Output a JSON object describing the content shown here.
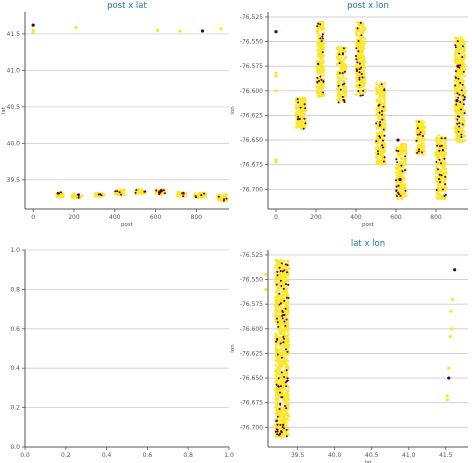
{
  "colors": {
    "title": "#1f77b4",
    "grid": "#cccccc",
    "axis": "#555555",
    "yellow": "#fde725",
    "purple": "#440154"
  },
  "chart_data": [
    {
      "id": "post_lat",
      "type": "scatter",
      "title": "post x lat",
      "xlabel": "post",
      "ylabel": "lat",
      "xlim": [
        -40,
        960
      ],
      "ylim": [
        39.1,
        41.8
      ],
      "xticks": [
        0,
        200,
        400,
        600,
        800
      ],
      "yticks": [
        39.5,
        40.0,
        40.5,
        41.0,
        41.5
      ],
      "ytick_labels": [
        "39.5",
        "40.0",
        "40.5",
        "41.0",
        "41.5"
      ],
      "grid": "y",
      "clusters": [
        {
          "x": [
            110,
            150
          ],
          "y": [
            39.26,
            39.33
          ]
        },
        {
          "x": [
            190,
            240
          ],
          "y": [
            39.25,
            39.31
          ]
        },
        {
          "x": [
            300,
            350
          ],
          "y": [
            39.27,
            39.32
          ]
        },
        {
          "x": [
            400,
            450
          ],
          "y": [
            39.29,
            39.37
          ]
        },
        {
          "x": [
            500,
            550
          ],
          "y": [
            39.3,
            39.37
          ]
        },
        {
          "x": [
            600,
            650
          ],
          "y": [
            39.3,
            39.37
          ]
        },
        {
          "x": [
            700,
            750
          ],
          "y": [
            39.27,
            39.33
          ]
        },
        {
          "x": [
            790,
            850
          ],
          "y": [
            39.25,
            39.32
          ]
        },
        {
          "x": [
            900,
            950
          ],
          "y": [
            39.21,
            39.3
          ]
        }
      ],
      "extra_points": [
        {
          "x": 0,
          "y": 41.62,
          "c": "purple"
        },
        {
          "x": 0,
          "y": 41.55,
          "c": "yellow"
        },
        {
          "x": 0,
          "y": 41.52,
          "c": "yellow"
        },
        {
          "x": 210,
          "y": 41.59,
          "c": "yellow"
        },
        {
          "x": 610,
          "y": 41.55,
          "c": "yellow"
        },
        {
          "x": 720,
          "y": 41.54,
          "c": "yellow"
        },
        {
          "x": 830,
          "y": 41.54,
          "c": "purple"
        },
        {
          "x": 920,
          "y": 41.57,
          "c": "yellow"
        },
        {
          "x": 620,
          "y": 39.33,
          "c": "purple"
        },
        {
          "x": 628,
          "y": 39.35,
          "c": "purple"
        }
      ]
    },
    {
      "id": "post_lon",
      "type": "scatter",
      "title": "post x lon",
      "xlabel": "post",
      "ylabel": "lon",
      "xlim": [
        -40,
        960
      ],
      "ylim": [
        -76.72,
        -76.52
      ],
      "xticks": [
        0,
        200,
        400,
        600,
        800
      ],
      "yticks": [
        -76.525,
        -76.55,
        -76.575,
        -76.6,
        -76.625,
        -76.65,
        -76.675,
        -76.7
      ],
      "ytick_labels": [
        "-76.525",
        "-76.550",
        "-76.575",
        "-76.600",
        "-76.625",
        "-76.650",
        "-76.675",
        "-76.700"
      ],
      "grid": "y",
      "clusters": [
        {
          "x": [
            100,
            150
          ],
          "y": [
            -76.64,
            -76.607
          ]
        },
        {
          "x": [
            205,
            240
          ],
          "y": [
            -76.608,
            -76.53
          ]
        },
        {
          "x": [
            305,
            350
          ],
          "y": [
            -76.612,
            -76.556
          ]
        },
        {
          "x": [
            400,
            445
          ],
          "y": [
            -76.605,
            -76.53
          ]
        },
        {
          "x": [
            500,
            545
          ],
          "y": [
            -76.675,
            -76.592
          ]
        },
        {
          "x": [
            600,
            650
          ],
          "y": [
            -76.71,
            -76.654
          ]
        },
        {
          "x": [
            700,
            745
          ],
          "y": [
            -76.665,
            -76.63
          ]
        },
        {
          "x": [
            800,
            850
          ],
          "y": [
            -76.71,
            -76.645
          ]
        },
        {
          "x": [
            895,
            945
          ],
          "y": [
            -76.652,
            -76.546
          ]
        }
      ],
      "extra_points": [
        {
          "x": 0,
          "y": -76.54,
          "c": "purple"
        },
        {
          "x": 0,
          "y": -76.582,
          "c": "yellow"
        },
        {
          "x": 0,
          "y": -76.585,
          "c": "yellow"
        },
        {
          "x": 0,
          "y": -76.6,
          "c": "yellow"
        },
        {
          "x": 0,
          "y": -76.67,
          "c": "yellow"
        },
        {
          "x": 0,
          "y": -76.672,
          "c": "yellow"
        },
        {
          "x": 610,
          "y": -76.65,
          "c": "purple"
        },
        {
          "x": 620,
          "y": -76.69,
          "c": "purple"
        },
        {
          "x": 910,
          "y": -76.575,
          "c": "purple"
        },
        {
          "x": 905,
          "y": -76.61,
          "c": "purple"
        }
      ]
    },
    {
      "id": "empty",
      "type": "scatter",
      "title": "",
      "xlabel": "",
      "ylabel": "",
      "xlim": [
        0,
        1
      ],
      "ylim": [
        0,
        1
      ],
      "xticks": [
        0,
        0.2,
        0.4,
        0.6,
        0.8,
        1.0
      ],
      "xtick_labels": [
        "0.0",
        "0.2",
        "0.4",
        "0.6",
        "0.8",
        "1.0"
      ],
      "yticks": [
        0,
        0.2,
        0.4,
        0.6,
        0.8,
        1.0
      ],
      "ytick_labels": [
        "0.0",
        "0.2",
        "0.4",
        "0.6",
        "0.8",
        "1.0"
      ],
      "grid": "y",
      "clusters": [],
      "extra_points": []
    },
    {
      "id": "lat_lon",
      "type": "scatter",
      "title": "lat x lon",
      "xlabel": "lat",
      "ylabel": "lon",
      "xlim": [
        39.1,
        41.8
      ],
      "ylim": [
        -76.72,
        -76.52
      ],
      "xticks": [
        39.5,
        40.0,
        40.5,
        41.0,
        41.5
      ],
      "xtick_labels": [
        "39.5",
        "40.0",
        "40.5",
        "41.0",
        "41.5"
      ],
      "yticks": [
        -76.525,
        -76.55,
        -76.575,
        -76.6,
        -76.625,
        -76.65,
        -76.675,
        -76.7
      ],
      "ytick_labels": [
        "-76.525",
        "-76.550",
        "-76.575",
        "-76.600",
        "-76.625",
        "-76.650",
        "-76.675",
        "-76.700"
      ],
      "grid": "y",
      "clusters": [
        {
          "x": [
            39.2,
            39.38
          ],
          "y": [
            -76.71,
            -76.53
          ]
        }
      ],
      "extra_points": [
        {
          "x": 41.62,
          "y": -76.54,
          "c": "purple"
        },
        {
          "x": 41.59,
          "y": -76.57,
          "c": "yellow"
        },
        {
          "x": 41.57,
          "y": -76.582,
          "c": "yellow"
        },
        {
          "x": 41.58,
          "y": -76.6,
          "c": "yellow"
        },
        {
          "x": 41.56,
          "y": -76.608,
          "c": "yellow"
        },
        {
          "x": 41.54,
          "y": -76.64,
          "c": "yellow"
        },
        {
          "x": 41.54,
          "y": -76.65,
          "c": "purple"
        },
        {
          "x": 41.52,
          "y": -76.668,
          "c": "yellow"
        },
        {
          "x": 41.52,
          "y": -76.672,
          "c": "yellow"
        },
        {
          "x": 39.07,
          "y": -76.545,
          "c": "yellow"
        },
        {
          "x": 39.07,
          "y": -76.56,
          "c": "yellow"
        }
      ]
    }
  ]
}
